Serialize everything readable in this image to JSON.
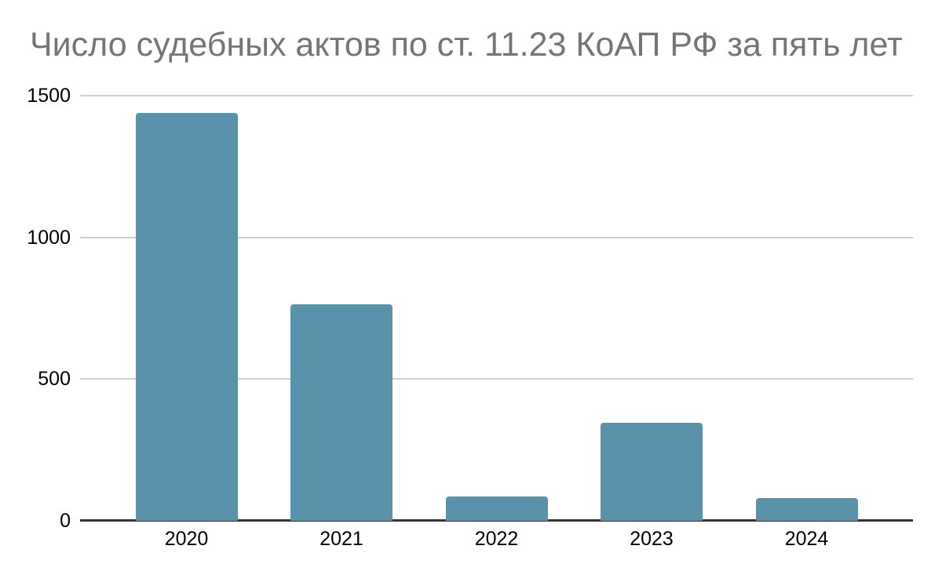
{
  "chart_data": {
    "type": "bar",
    "title": "Число судебных актов по ст. 11.23 КоАП РФ за пять лет",
    "categories": [
      "2020",
      "2021",
      "2022",
      "2023",
      "2024"
    ],
    "values": [
      1440,
      765,
      85,
      345,
      80
    ],
    "xlabel": "",
    "ylabel": "",
    "ylim": [
      0,
      1500
    ],
    "yticks": [
      0,
      500,
      1000,
      1500
    ],
    "grid": true,
    "legend": "none",
    "colors": {
      "bar": "#5a92ac",
      "title": "#757575",
      "tick_labels": "#000000",
      "gridline": "#cfcfcf",
      "axis_line": "#333333",
      "background": "#ffffff"
    }
  }
}
